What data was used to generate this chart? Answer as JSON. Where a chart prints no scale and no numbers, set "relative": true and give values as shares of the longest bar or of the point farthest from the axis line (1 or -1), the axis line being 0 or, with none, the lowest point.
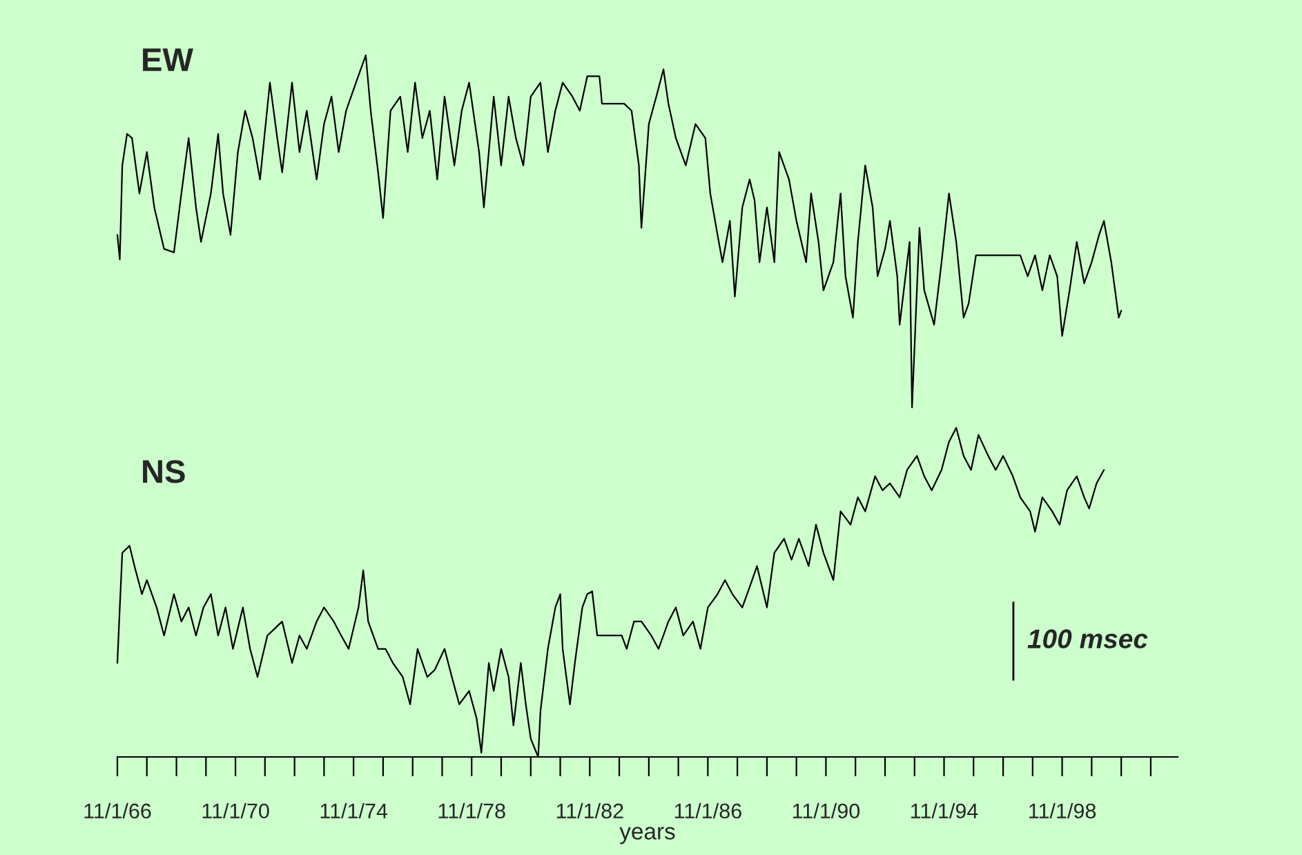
{
  "chart_data": {
    "type": "line",
    "relative": true,
    "xlabel": "years",
    "tick_labels": "x",
    "grid": false,
    "legend": false,
    "marker": "none",
    "line_style": "solid",
    "annotations": [
      "100 msec"
    ],
    "xlim": [
      "1966-11-01",
      "2002-10-01"
    ],
    "xticks": [
      {
        "value": "1966-11-01",
        "label": "11/1/66"
      },
      {
        "value": "1967-11-01",
        "label": null
      },
      {
        "value": "1968-11-01",
        "label": null
      },
      {
        "value": "1969-11-01",
        "label": null
      },
      {
        "value": "1970-11-01",
        "label": "11/1/70"
      },
      {
        "value": "1971-11-01",
        "label": null
      },
      {
        "value": "1972-11-01",
        "label": null
      },
      {
        "value": "1973-11-01",
        "label": null
      },
      {
        "value": "1974-11-01",
        "label": "11/1/74"
      },
      {
        "value": "1975-11-01",
        "label": null
      },
      {
        "value": "1976-11-01",
        "label": null
      },
      {
        "value": "1977-11-01",
        "label": null
      },
      {
        "value": "1978-11-01",
        "label": "11/1/78"
      },
      {
        "value": "1979-11-01",
        "label": null
      },
      {
        "value": "1980-11-01",
        "label": null
      },
      {
        "value": "1981-11-01",
        "label": null
      },
      {
        "value": "1982-11-01",
        "label": "11/1/82"
      },
      {
        "value": "1983-11-01",
        "label": null
      },
      {
        "value": "1984-11-01",
        "label": null
      },
      {
        "value": "1985-11-01",
        "label": null
      },
      {
        "value": "1986-11-01",
        "label": "11/1/86"
      },
      {
        "value": "1987-11-01",
        "label": null
      },
      {
        "value": "1988-11-01",
        "label": null
      },
      {
        "value": "1989-11-01",
        "label": null
      },
      {
        "value": "1990-11-01",
        "label": "11/1/90"
      },
      {
        "value": "1991-11-01",
        "label": null
      },
      {
        "value": "1992-11-01",
        "label": null
      },
      {
        "value": "1993-11-01",
        "label": null
      },
      {
        "value": "1994-11-01",
        "label": "11/1/94"
      },
      {
        "value": "1995-11-01",
        "label": null
      },
      {
        "value": "1996-11-01",
        "label": null
      },
      {
        "value": "1997-11-01",
        "label": null
      },
      {
        "value": "1998-11-01",
        "label": "11/1/98"
      },
      {
        "value": "1999-11-01",
        "label": null
      },
      {
        "value": "2000-11-01",
        "label": null
      },
      {
        "value": "2001-11-01",
        "label": null
      }
    ],
    "series": [
      {
        "name": "EW",
        "color": "#000000",
        "x": [
          "1966-11",
          "1966-12",
          "1967-01",
          "1967-03",
          "1967-05",
          "1967-08",
          "1967-11",
          "1968-02",
          "1968-06",
          "1968-10",
          "1969-01",
          "1969-04",
          "1969-07",
          "1969-09",
          "1970-01",
          "1970-04",
          "1970-06",
          "1970-09",
          "1970-12",
          "1971-03",
          "1971-06",
          "1971-09",
          "1972-01",
          "1972-04",
          "1972-06",
          "1972-10",
          "1973-01",
          "1973-04",
          "1973-08",
          "1973-11",
          "1974-02",
          "1974-05",
          "1974-08",
          "1974-12",
          "1975-04",
          "1975-06",
          "1975-09",
          "1975-11",
          "1976-02",
          "1976-06",
          "1976-09",
          "1976-12",
          "1977-03",
          "1977-06",
          "1977-09",
          "1977-12",
          "1978-04",
          "1978-07",
          "1978-10",
          "1979-02",
          "1979-04",
          "1979-08",
          "1979-11",
          "1980-02",
          "1980-05",
          "1980-08",
          "1980-11",
          "1981-03",
          "1981-06",
          "1981-09",
          "1981-12",
          "1982-04",
          "1982-07",
          "1982-10",
          "1983-03",
          "1983-04",
          "1984-01",
          "1984-04",
          "1984-07",
          "1984-08",
          "1984-11",
          "1985-02",
          "1985-05",
          "1985-07",
          "1985-10",
          "1986-02",
          "1986-06",
          "1986-10",
          "1986-12",
          "1987-03",
          "1987-05",
          "1987-08",
          "1987-10",
          "1988-01",
          "1988-04",
          "1988-06",
          "1988-08",
          "1988-11",
          "1989-02",
          "1989-04",
          "1989-08",
          "1989-11",
          "1990-03",
          "1990-05",
          "1990-08",
          "1990-10",
          "1991-02",
          "1991-05",
          "1991-07",
          "1991-10",
          "1991-12",
          "1992-03",
          "1992-06",
          "1992-08",
          "1992-11",
          "1993-01",
          "1993-04",
          "1993-05",
          "1993-09",
          "1993-10",
          "1994-01",
          "1994-03",
          "1994-07",
          "1994-10",
          "1995-01",
          "1995-04",
          "1995-07",
          "1995-09",
          "1995-12",
          "1996-02",
          "1997-06",
          "1997-09",
          "1997-12",
          "1998-03",
          "1998-06",
          "1998-09",
          "1998-11",
          "1999-02",
          "1999-05",
          "1999-08",
          "1999-11",
          "2000-02",
          "2000-04",
          "2000-07",
          "2000-10",
          "2000-11"
        ],
        "values": [
          0.744,
          0.709,
          0.843,
          0.888,
          0.882,
          0.803,
          0.862,
          0.783,
          0.724,
          0.719,
          0.803,
          0.882,
          0.783,
          0.734,
          0.803,
          0.888,
          0.803,
          0.744,
          0.862,
          0.921,
          0.882,
          0.823,
          0.961,
          0.882,
          0.833,
          0.961,
          0.862,
          0.921,
          0.823,
          0.902,
          0.941,
          0.862,
          0.921,
          0.961,
          1.0,
          0.921,
          0.833,
          0.768,
          0.921,
          0.941,
          0.862,
          0.961,
          0.882,
          0.921,
          0.823,
          0.941,
          0.843,
          0.921,
          0.961,
          0.862,
          0.783,
          0.941,
          0.843,
          0.941,
          0.882,
          0.843,
          0.941,
          0.961,
          0.862,
          0.921,
          0.961,
          0.941,
          0.921,
          0.97,
          0.97,
          0.931,
          0.931,
          0.921,
          0.843,
          0.754,
          0.902,
          0.941,
          0.98,
          0.931,
          0.882,
          0.843,
          0.902,
          0.882,
          0.803,
          0.744,
          0.705,
          0.764,
          0.656,
          0.783,
          0.823,
          0.793,
          0.705,
          0.783,
          0.705,
          0.862,
          0.823,
          0.764,
          0.705,
          0.803,
          0.734,
          0.665,
          0.705,
          0.803,
          0.685,
          0.626,
          0.734,
          0.843,
          0.783,
          0.685,
          0.724,
          0.764,
          0.685,
          0.616,
          0.734,
          0.498,
          0.754,
          0.665,
          0.616,
          0.705,
          0.803,
          0.734,
          0.626,
          0.646,
          0.715,
          0.715,
          0.715,
          0.685,
          0.715,
          0.665,
          0.715,
          0.685,
          0.6,
          0.665,
          0.734,
          0.675,
          0.705,
          0.744,
          0.764,
          0.705,
          0.626,
          0.636
        ]
      },
      {
        "name": "NS",
        "color": "#000000",
        "x": [
          "1966-11",
          "1966-12",
          "1967-01",
          "1967-04",
          "1967-06",
          "1967-09",
          "1967-11",
          "1968-03",
          "1968-06",
          "1968-10",
          "1969-01",
          "1969-04",
          "1969-07",
          "1969-10",
          "1970-01",
          "1970-04",
          "1970-07",
          "1970-10",
          "1971-02",
          "1971-05",
          "1971-08",
          "1971-12",
          "1972-03",
          "1972-06",
          "1972-10",
          "1973-01",
          "1973-04",
          "1973-08",
          "1973-11",
          "1974-03",
          "1974-06",
          "1974-09",
          "1975-01",
          "1975-03",
          "1975-05",
          "1975-09",
          "1975-12",
          "1976-03",
          "1976-07",
          "1976-10",
          "1977-01",
          "1977-05",
          "1977-08",
          "1977-12",
          "1978-03",
          "1978-06",
          "1978-10",
          "1979-01",
          "1979-03",
          "1979-06",
          "1979-08",
          "1979-11",
          "1980-02",
          "1980-04",
          "1980-07",
          "1980-09",
          "1980-11",
          "1981-02",
          "1981-03",
          "1981-06",
          "1981-09",
          "1981-11",
          "1981-12",
          "1982-03",
          "1982-05",
          "1982-08",
          "1982-10",
          "1982-12",
          "1983-02",
          "1983-04",
          "1983-12",
          "1984-02",
          "1984-05",
          "1984-08",
          "1984-12",
          "1985-03",
          "1985-07",
          "1985-10",
          "1986-01",
          "1986-05",
          "1986-08",
          "1986-11",
          "1987-03",
          "1987-06",
          "1987-09",
          "1988-01",
          "1988-04",
          "1988-07",
          "1988-11",
          "1989-02",
          "1989-06",
          "1989-09",
          "1989-12",
          "1990-04",
          "1990-07",
          "1990-10",
          "1991-02",
          "1991-05",
          "1991-09",
          "1991-12",
          "1992-03",
          "1992-07",
          "1992-10",
          "1993-01",
          "1993-05",
          "1993-08",
          "1993-12",
          "1994-03",
          "1994-06",
          "1994-10",
          "1995-01",
          "1995-04",
          "1995-07",
          "1995-10",
          "1996-01",
          "1996-05",
          "1996-08",
          "1996-11",
          "1997-03",
          "1997-06",
          "1997-10",
          "1997-12",
          "1998-03",
          "1998-07",
          "1998-10",
          "1999-01",
          "1999-05",
          "1999-08",
          "1999-10",
          "2000-01",
          "2000-04"
        ],
        "values": [
          0.134,
          0.213,
          0.291,
          0.301,
          0.272,
          0.232,
          0.252,
          0.213,
          0.173,
          0.232,
          0.193,
          0.213,
          0.173,
          0.213,
          0.232,
          0.173,
          0.213,
          0.154,
          0.213,
          0.154,
          0.114,
          0.173,
          0.183,
          0.193,
          0.134,
          0.173,
          0.154,
          0.193,
          0.213,
          0.193,
          0.173,
          0.154,
          0.213,
          0.266,
          0.193,
          0.154,
          0.154,
          0.134,
          0.114,
          0.075,
          0.154,
          0.114,
          0.124,
          0.154,
          0.114,
          0.075,
          0.094,
          0.055,
          0.006,
          0.134,
          0.094,
          0.154,
          0.114,
          0.045,
          0.134,
          0.075,
          0.026,
          0.0,
          0.065,
          0.154,
          0.213,
          0.232,
          0.154,
          0.075,
          0.134,
          0.213,
          0.232,
          0.236,
          0.173,
          0.173,
          0.173,
          0.154,
          0.193,
          0.193,
          0.173,
          0.154,
          0.193,
          0.213,
          0.173,
          0.193,
          0.154,
          0.213,
          0.232,
          0.252,
          0.232,
          0.213,
          0.242,
          0.272,
          0.213,
          0.291,
          0.311,
          0.281,
          0.311,
          0.272,
          0.331,
          0.291,
          0.252,
          0.35,
          0.331,
          0.37,
          0.35,
          0.4,
          0.38,
          0.39,
          0.37,
          0.409,
          0.429,
          0.4,
          0.38,
          0.409,
          0.449,
          0.469,
          0.429,
          0.409,
          0.459,
          0.429,
          0.409,
          0.429,
          0.4,
          0.37,
          0.35,
          0.321,
          0.37,
          0.35,
          0.331,
          0.38,
          0.4,
          0.37,
          0.354,
          0.39,
          0.409
        ]
      }
    ]
  }
}
